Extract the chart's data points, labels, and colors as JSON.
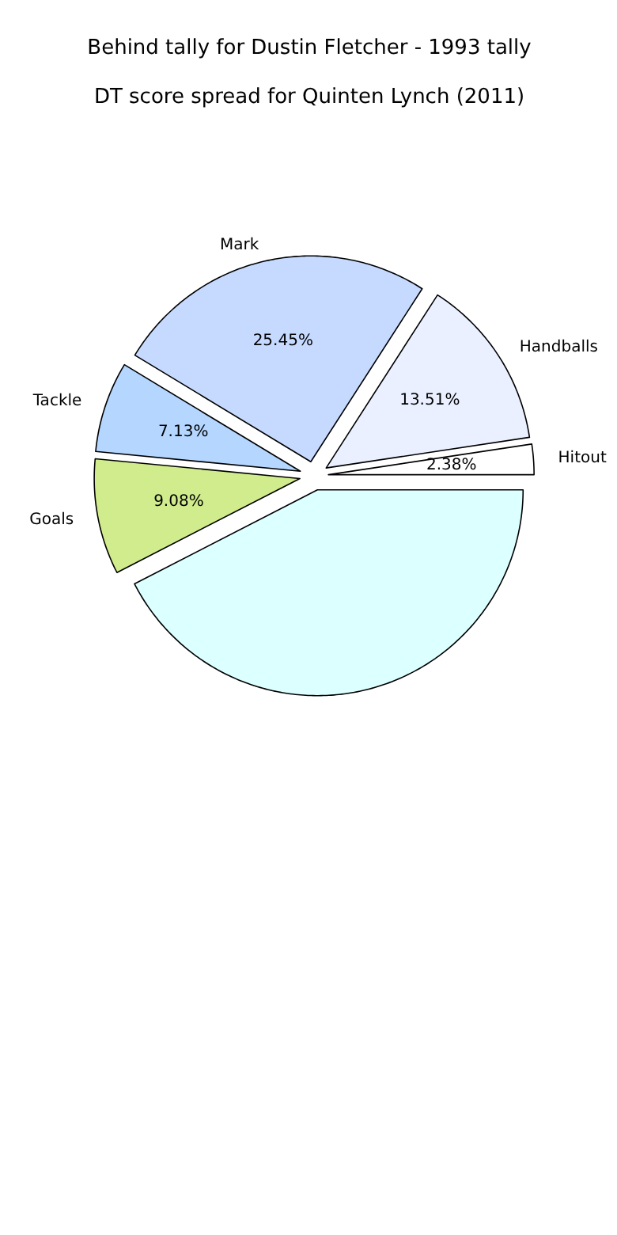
{
  "chart_data": {
    "type": "pie",
    "title": "Behind tally for Dustin Fletcher - 1993 tally",
    "subtitle": "DT score spread for Quinten Lynch (2011)",
    "categories": [
      "Hitout",
      "Handballs",
      "Mark",
      "Tackle",
      "Goals",
      null
    ],
    "values": [
      2.38,
      13.51,
      25.45,
      7.13,
      9.08,
      42.45
    ],
    "value_labels": [
      "2.38%",
      "13.51%",
      "25.45%",
      "7.13%",
      "9.08%",
      null
    ],
    "colors": [
      "#ffffff",
      "#eaf0ff",
      "#c6d9ff",
      "#b5d6ff",
      "#d0ec8c",
      "#dcffff"
    ]
  }
}
